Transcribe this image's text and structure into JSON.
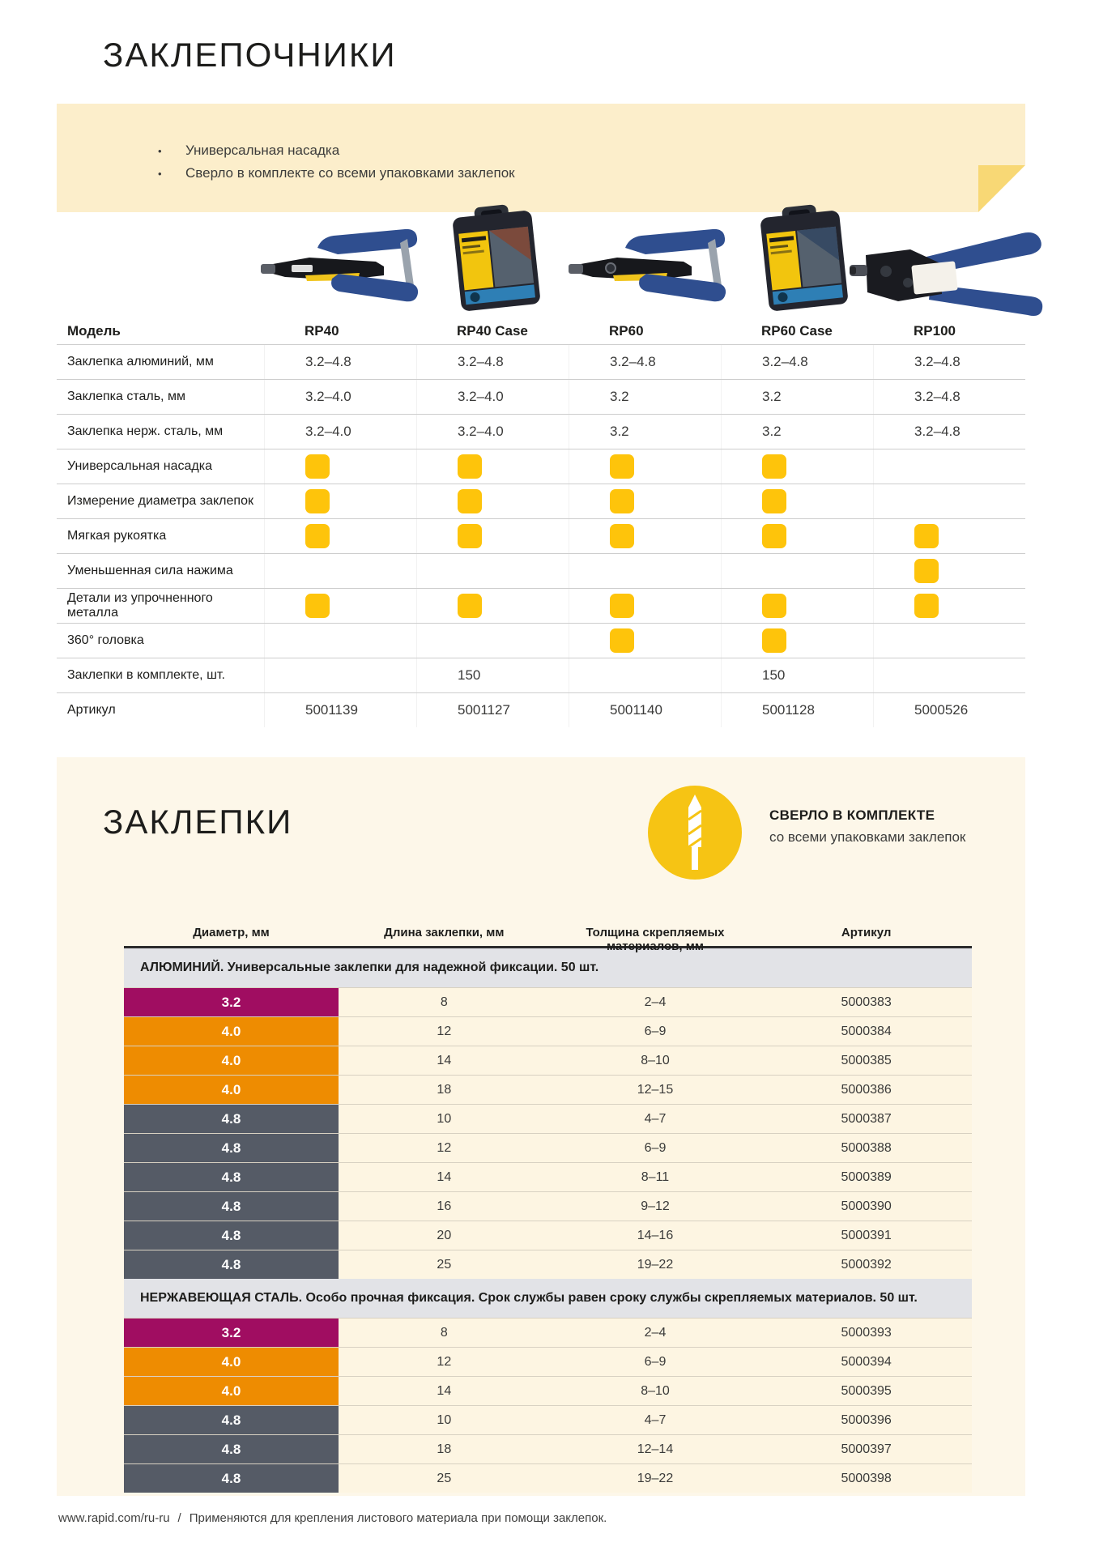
{
  "page": {
    "title_riveters": "ЗАКЛЕПОЧНИКИ",
    "title_rivets": "ЗАКЛЕПКИ",
    "banner": {
      "bullets": [
        "Универсальная насадка",
        "Сверло в комплекте со всеми упаковками заклепок"
      ]
    },
    "footer": {
      "url": "www.rapid.com/ru-ru",
      "separator": "/",
      "note": "Применяются для крепления листового материала при помощи заклепок."
    }
  },
  "riveters_table": {
    "model_row_label": "Модель",
    "models": [
      "RP40",
      "RP40 Case",
      "RP60",
      "RP60 Case",
      "RP100"
    ],
    "rows": [
      {
        "label": "Заклепка алюминий, мм",
        "type": "text",
        "values": [
          "3.2–4.8",
          "3.2–4.8",
          "3.2–4.8",
          "3.2–4.8",
          "3.2–4.8"
        ]
      },
      {
        "label": "Заклепка сталь, мм",
        "type": "text",
        "values": [
          "3.2–4.0",
          "3.2–4.0",
          "3.2",
          "3.2",
          "3.2–4.8"
        ]
      },
      {
        "label": "Заклепка нерж. сталь, мм",
        "type": "text",
        "values": [
          "3.2–4.0",
          "3.2–4.0",
          "3.2",
          "3.2",
          "3.2–4.8"
        ]
      },
      {
        "label": "Универсальная насадка",
        "type": "check",
        "values": [
          true,
          true,
          true,
          true,
          false
        ]
      },
      {
        "label": "Измерение диаметра заклепок",
        "type": "check",
        "values": [
          true,
          true,
          true,
          true,
          false
        ]
      },
      {
        "label": "Мягкая рукоятка",
        "type": "check",
        "values": [
          true,
          true,
          true,
          true,
          true
        ]
      },
      {
        "label": "Уменьшенная сила нажима",
        "type": "check",
        "values": [
          false,
          false,
          false,
          false,
          true
        ]
      },
      {
        "label": "Детали из упрочненного металла",
        "type": "check",
        "values": [
          true,
          true,
          true,
          true,
          true
        ]
      },
      {
        "label": "360° головка",
        "type": "check",
        "values": [
          false,
          false,
          true,
          true,
          false
        ]
      },
      {
        "label": "Заклепки в комплекте, шт.",
        "type": "text",
        "values": [
          "",
          "150",
          "",
          "150",
          ""
        ]
      },
      {
        "label": "Артикул",
        "type": "text",
        "values": [
          "5001139",
          "5001127",
          "5001140",
          "5001128",
          "5000526"
        ]
      }
    ]
  },
  "rivets": {
    "drill_badge": {
      "icon": "drill-bit-icon",
      "title": "СВЕРЛО В КОМПЛЕКТЕ",
      "subtitle": "со всеми упаковками заклепок"
    },
    "table": {
      "headers": [
        "Диаметр, мм",
        "Длина заклепки, мм",
        "Толщина скрепляемых материалов, мм",
        "Артикул"
      ],
      "groups": [
        {
          "header": "АЛЮМИНИЙ. Универсальные заклепки для надежной фиксации. 50 шт.",
          "rows": [
            [
              "3.2",
              "8",
              "2–4",
              "5000383"
            ],
            [
              "4.0",
              "12",
              "6–9",
              "5000384"
            ],
            [
              "4.0",
              "14",
              "8–10",
              "5000385"
            ],
            [
              "4.0",
              "18",
              "12–15",
              "5000386"
            ],
            [
              "4.8",
              "10",
              "4–7",
              "5000387"
            ],
            [
              "4.8",
              "12",
              "6–9",
              "5000388"
            ],
            [
              "4.8",
              "14",
              "8–11",
              "5000389"
            ],
            [
              "4.8",
              "16",
              "9–12",
              "5000390"
            ],
            [
              "4.8",
              "20",
              "14–16",
              "5000391"
            ],
            [
              "4.8",
              "25",
              "19–22",
              "5000392"
            ]
          ]
        },
        {
          "header": "НЕРЖАВЕЮЩАЯ СТАЛЬ. Особо прочная фиксация. Срок службы равен сроку службы скрепляемых материалов. 50 шт.",
          "rows": [
            [
              "3.2",
              "8",
              "2–4",
              "5000393"
            ],
            [
              "4.0",
              "12",
              "6–9",
              "5000394"
            ],
            [
              "4.0",
              "14",
              "8–10",
              "5000395"
            ],
            [
              "4.8",
              "10",
              "4–7",
              "5000396"
            ],
            [
              "4.8",
              "18",
              "12–14",
              "5000397"
            ],
            [
              "4.8",
              "25",
              "19–22",
              "5000398"
            ]
          ]
        }
      ]
    }
  },
  "icons": {
    "feature_check": "rounded-yellow-square",
    "drill": "drill-bit-in-yellow-circle"
  },
  "colors": {
    "banner_bg": "#FCEECB",
    "banner_fold": "#F8D875",
    "section_bg": "#FDF7E9",
    "row_bg": "#FDF5E2",
    "check_yellow": "#FEC40B",
    "circle_yellow": "#F6C414",
    "diameter_3_2": "#A00D61",
    "diameter_4_0": "#EE8C01",
    "diameter_4_8": "#555B66",
    "group_header_bg": "#E2E3E7"
  }
}
